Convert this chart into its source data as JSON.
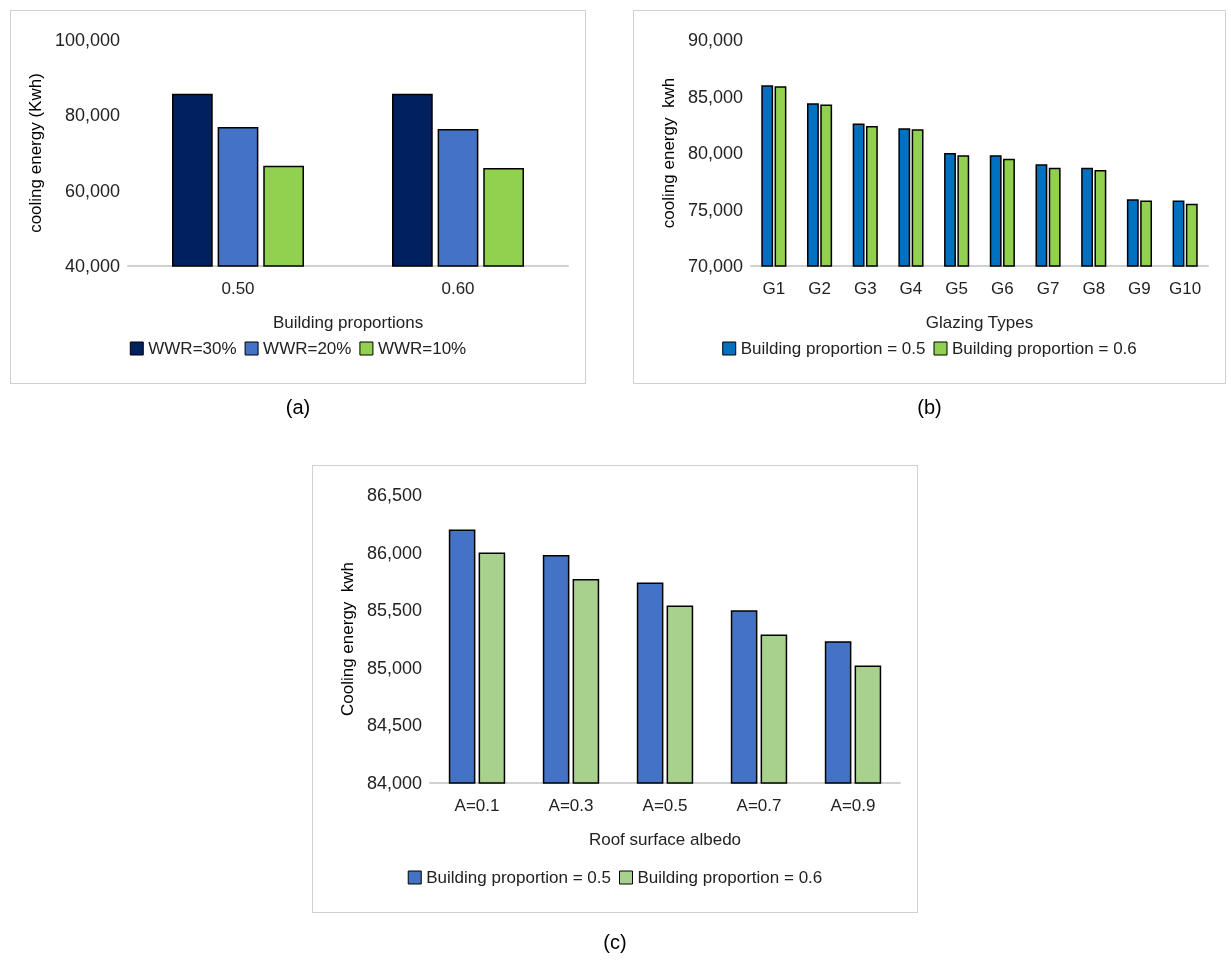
{
  "chart_data": [
    {
      "type": "bar",
      "xlabel": "Building proportions",
      "ylabel": "cooling energy (Kwh)",
      "categories": [
        "0.50",
        "0.60"
      ],
      "series": [
        {
          "name": "WWR=30%",
          "color": "#002060",
          "values": [
            85700,
            85700
          ]
        },
        {
          "name": "WWR=20%",
          "color": "#4472c4",
          "values": [
            76900,
            76400
          ]
        },
        {
          "name": "WWR=10%",
          "color": "#92d050",
          "values": [
            66600,
            66000
          ]
        }
      ],
      "ylim": [
        40000,
        100000
      ],
      "yticks": [
        {
          "value": 40000,
          "label": "40,000"
        },
        {
          "value": 60000,
          "label": "60,000"
        },
        {
          "value": 80000,
          "label": "80,000"
        },
        {
          "value": 100000,
          "label": "100,000"
        }
      ],
      "grid": false,
      "legend": "bottom",
      "annotations": [
        "(a)"
      ]
    },
    {
      "type": "bar",
      "xlabel": "Glazing Types",
      "ylabel": "cooling energy  kwh",
      "categories": [
        "G1",
        "G2",
        "G3",
        "G4",
        "G5",
        "G6",
        "G7",
        "G8",
        "G9",
        "G10"
      ],
      "series": [
        {
          "name": "Building proportion = 0.5",
          "color": "#0070c0",
          "values": [
            86000,
            84400,
            82600,
            82200,
            80000,
            79800,
            79000,
            78700,
            75900,
            75800
          ]
        },
        {
          "name": "Building proportion = 0.6",
          "color": "#92d050",
          "values": [
            85900,
            84300,
            82400,
            82100,
            79800,
            79500,
            78700,
            78500,
            75800,
            75500
          ]
        }
      ],
      "ylim": [
        70000,
        90000
      ],
      "yticks": [
        {
          "value": 70000,
          "label": "70,000"
        },
        {
          "value": 75000,
          "label": "75,000"
        },
        {
          "value": 80000,
          "label": "80,000"
        },
        {
          "value": 85000,
          "label": "85,000"
        },
        {
          "value": 90000,
          "label": "90,000"
        }
      ],
      "grid": false,
      "legend": "bottom",
      "annotations": [
        "(b)"
      ]
    },
    {
      "type": "bar",
      "xlabel": "Roof surface albedo",
      "ylabel": "Cooling energy  kwh",
      "categories": [
        "A=0.1",
        "A=0.3",
        "A=0.5",
        "A=0.7",
        "A=0.9"
      ],
      "series": [
        {
          "name": "Building proportion = 0.5",
          "color": "#4472c4",
          "values": [
            86200,
            85980,
            85740,
            85500,
            85230
          ]
        },
        {
          "name": "Building proportion = 0.6",
          "color": "#a9d18e",
          "values": [
            86000,
            85770,
            85540,
            85290,
            85020
          ]
        }
      ],
      "ylim": [
        84000,
        86500
      ],
      "yticks": [
        {
          "value": 84000,
          "label": "84,000"
        },
        {
          "value": 84500,
          "label": "84,500"
        },
        {
          "value": 85000,
          "label": "85,000"
        },
        {
          "value": 85500,
          "label": "85,500"
        },
        {
          "value": 86000,
          "label": "86,000"
        },
        {
          "value": 86500,
          "label": "86,500"
        }
      ],
      "grid": false,
      "legend": "bottom",
      "annotations": [
        "(c)"
      ]
    }
  ]
}
